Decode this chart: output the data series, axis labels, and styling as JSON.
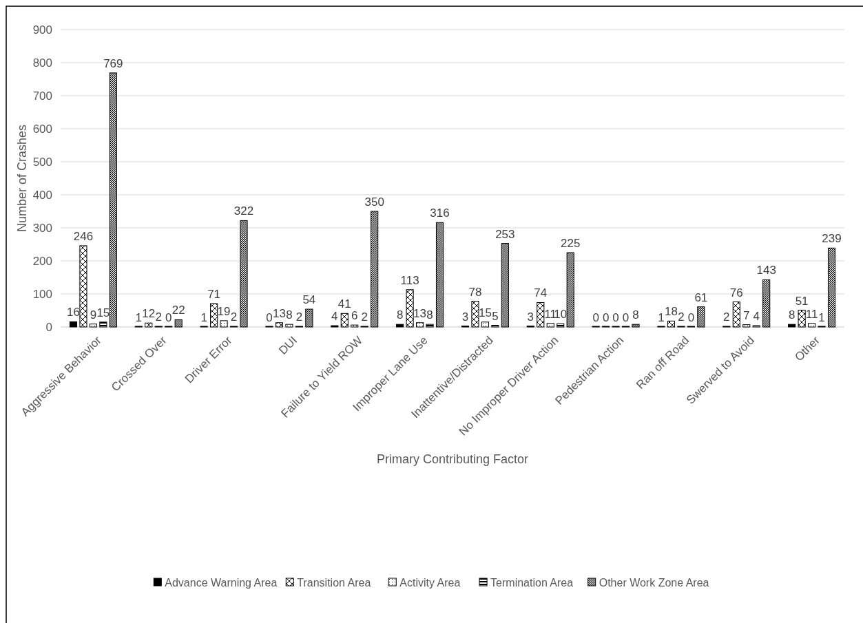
{
  "chart_data": {
    "type": "bar",
    "xlabel": "Primary Contributing Factor",
    "ylabel": "Number of Crashes",
    "categories": [
      "Aggressive Behavior",
      "Crossed Over",
      "Driver Error",
      "DUI",
      "Failure to Yield ROW",
      "Improper Lane Use",
      "Inattentive/Distracted",
      "No Improper Driver Action",
      "Pedestrian Action",
      "Ran off Road",
      "Swerved to Avoid",
      "Other"
    ],
    "series": [
      {
        "name": "Advance Warning Area",
        "color": "#000000",
        "values": [
          16,
          1,
          1,
          0,
          4,
          8,
          3,
          3,
          0,
          1,
          2,
          8
        ]
      },
      {
        "name": "Transition Area",
        "color": "#000000",
        "values": [
          246,
          12,
          71,
          13,
          41,
          113,
          78,
          74,
          0,
          18,
          76,
          51
        ]
      },
      {
        "name": "Activity Area",
        "color": "#000000",
        "values": [
          9,
          2,
          19,
          8,
          6,
          13,
          15,
          11,
          0,
          2,
          7,
          11
        ]
      },
      {
        "name": "Termination Area",
        "color": "#000000",
        "values": [
          15,
          0,
          2,
          2,
          2,
          8,
          5,
          10,
          0,
          0,
          4,
          1
        ]
      },
      {
        "name": "Other Work Zone Area",
        "color": "#000000",
        "values": [
          769,
          22,
          322,
          54,
          350,
          316,
          253,
          225,
          8,
          61,
          143,
          239
        ]
      }
    ],
    "ylim": [
      0,
      900
    ],
    "yticks": [
      0,
      100,
      200,
      300,
      400,
      500,
      600,
      700,
      800,
      900
    ],
    "grid": "y",
    "legend": "bottom",
    "data_labels": true
  }
}
